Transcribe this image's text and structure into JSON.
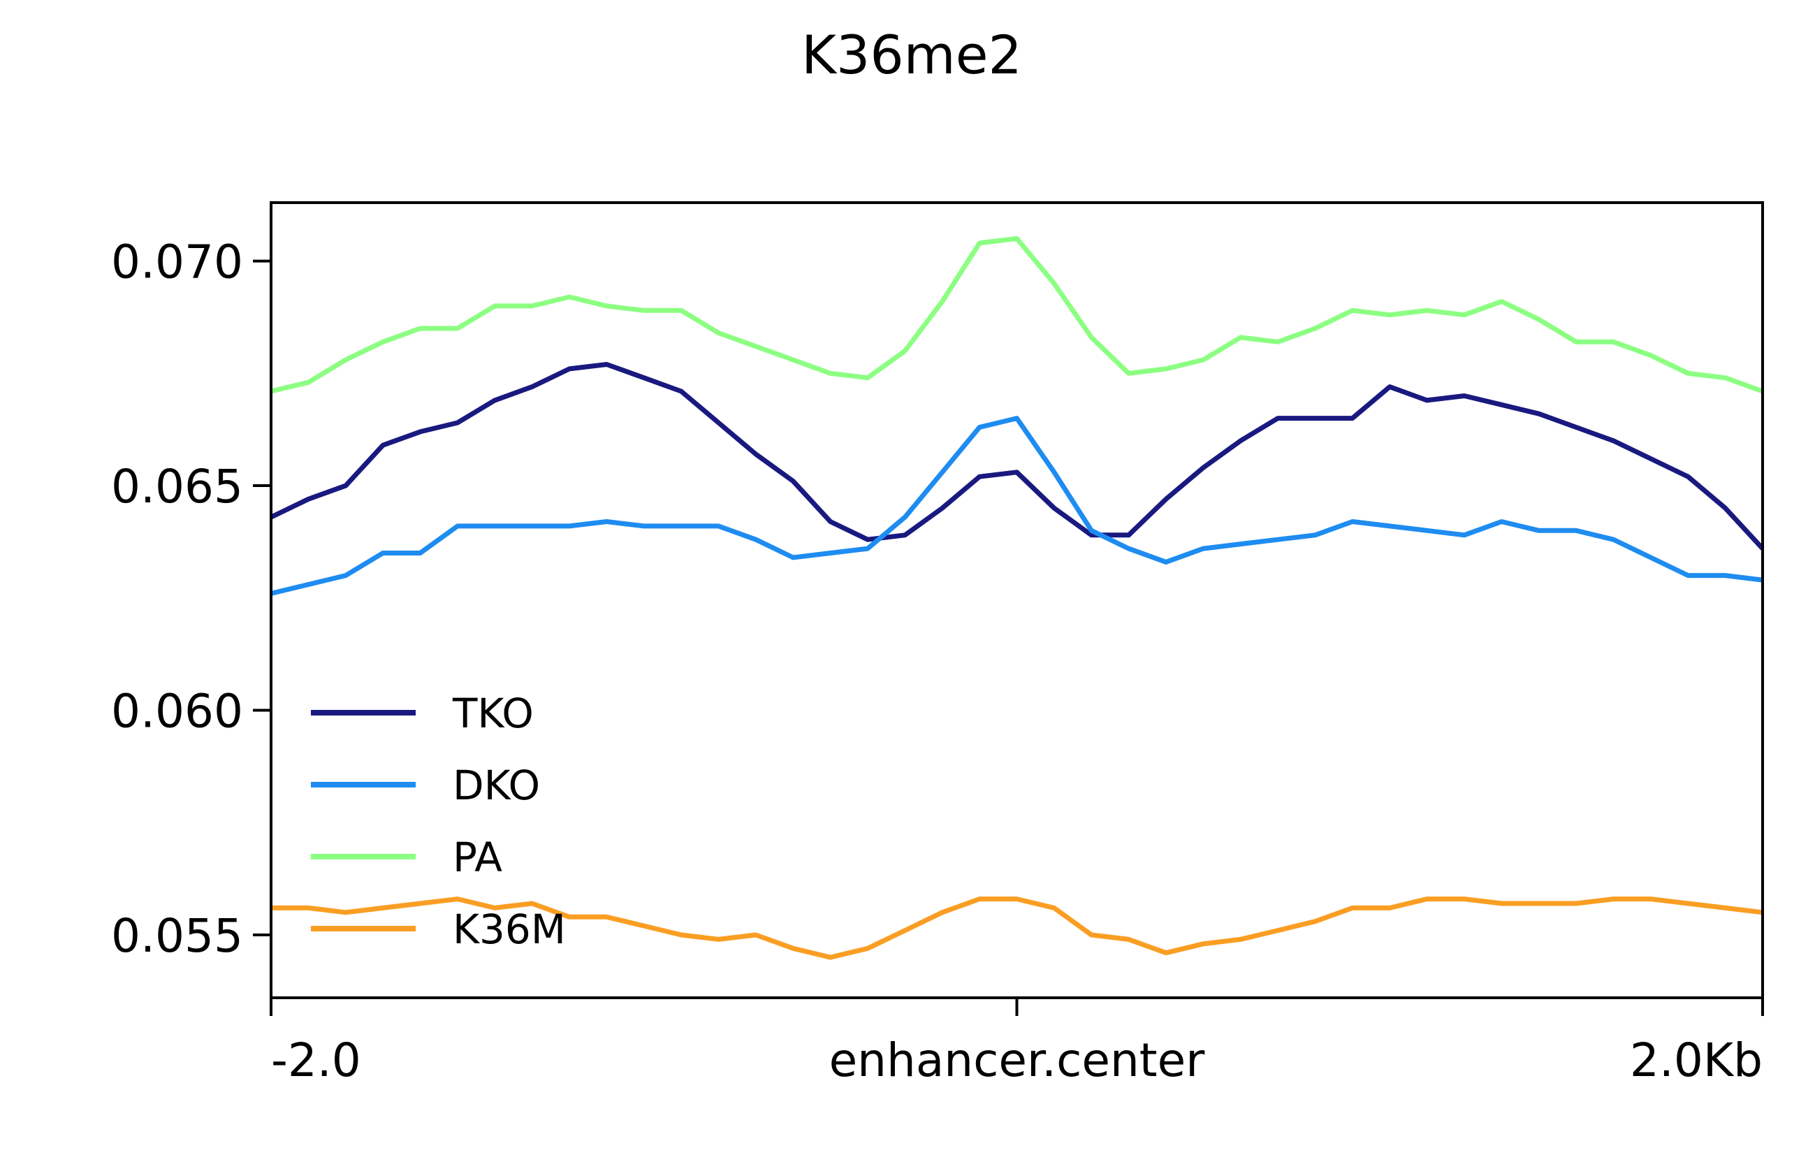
{
  "chart_data": {
    "type": "line",
    "title": "K36me2",
    "xlabel": "",
    "ylabel": "",
    "x_ticks": [
      {
        "pos": 0,
        "label": "-2.0"
      },
      {
        "pos": 20,
        "label": "enhancer.center"
      },
      {
        "pos": 40,
        "label": "2.0Kb"
      }
    ],
    "y_ticks": [
      {
        "value": 0.055,
        "label": "0.055"
      },
      {
        "value": 0.06,
        "label": "0.060"
      },
      {
        "value": 0.065,
        "label": "0.065"
      },
      {
        "value": 0.07,
        "label": "0.070"
      }
    ],
    "xlim": [
      0,
      40
    ],
    "ylim": [
      0.0536,
      0.0713
    ],
    "grid": false,
    "legend_position": "lower-left",
    "x": [
      0,
      1,
      2,
      3,
      4,
      5,
      6,
      7,
      8,
      9,
      10,
      11,
      12,
      13,
      14,
      15,
      16,
      17,
      18,
      19,
      20,
      21,
      22,
      23,
      24,
      25,
      26,
      27,
      28,
      29,
      30,
      31,
      32,
      33,
      34,
      35,
      36,
      37,
      38,
      39,
      40
    ],
    "series": [
      {
        "name": "TKO",
        "color": "#191980",
        "values": [
          0.0643,
          0.0647,
          0.065,
          0.0659,
          0.0662,
          0.0664,
          0.0669,
          0.0672,
          0.0676,
          0.0677,
          0.0674,
          0.0671,
          0.0664,
          0.0657,
          0.0651,
          0.0642,
          0.0638,
          0.0639,
          0.0645,
          0.0652,
          0.0653,
          0.0645,
          0.0639,
          0.0639,
          0.0647,
          0.0654,
          0.066,
          0.0665,
          0.0665,
          0.0665,
          0.0672,
          0.0669,
          0.067,
          0.0668,
          0.0666,
          0.0663,
          0.066,
          0.0656,
          0.0652,
          0.0645,
          0.0636
        ]
      },
      {
        "name": "DKO",
        "color": "#1e8cf0",
        "values": [
          0.0626,
          0.0628,
          0.063,
          0.0635,
          0.0635,
          0.0641,
          0.0641,
          0.0641,
          0.0641,
          0.0642,
          0.0641,
          0.0641,
          0.0641,
          0.0638,
          0.0634,
          0.0635,
          0.0636,
          0.0643,
          0.0653,
          0.0663,
          0.0665,
          0.0653,
          0.064,
          0.0636,
          0.0633,
          0.0636,
          0.0637,
          0.0638,
          0.0639,
          0.0642,
          0.0641,
          0.064,
          0.0639,
          0.0642,
          0.064,
          0.064,
          0.0638,
          0.0634,
          0.063,
          0.063,
          0.0629
        ]
      },
      {
        "name": "PA",
        "color": "#8cff82",
        "values": [
          0.0671,
          0.0673,
          0.0678,
          0.0682,
          0.0685,
          0.0685,
          0.069,
          0.069,
          0.0692,
          0.069,
          0.0689,
          0.0689,
          0.0684,
          0.0681,
          0.0678,
          0.0675,
          0.0674,
          0.068,
          0.0691,
          0.0704,
          0.0705,
          0.0695,
          0.0683,
          0.0675,
          0.0676,
          0.0678,
          0.0683,
          0.0682,
          0.0685,
          0.0689,
          0.0688,
          0.0689,
          0.0688,
          0.0691,
          0.0687,
          0.0682,
          0.0682,
          0.0679,
          0.0675,
          0.0674,
          0.0671
        ]
      },
      {
        "name": "K36M",
        "color": "#fa9e23",
        "values": [
          0.0556,
          0.0556,
          0.0555,
          0.0556,
          0.0557,
          0.0558,
          0.0556,
          0.0557,
          0.0554,
          0.0554,
          0.0552,
          0.055,
          0.0549,
          0.055,
          0.0547,
          0.0545,
          0.0547,
          0.0551,
          0.0555,
          0.0558,
          0.0558,
          0.0556,
          0.055,
          0.0549,
          0.0546,
          0.0548,
          0.0549,
          0.0551,
          0.0553,
          0.0556,
          0.0556,
          0.0558,
          0.0558,
          0.0557,
          0.0557,
          0.0557,
          0.0558,
          0.0558,
          0.0557,
          0.0556,
          0.0555
        ]
      }
    ]
  }
}
